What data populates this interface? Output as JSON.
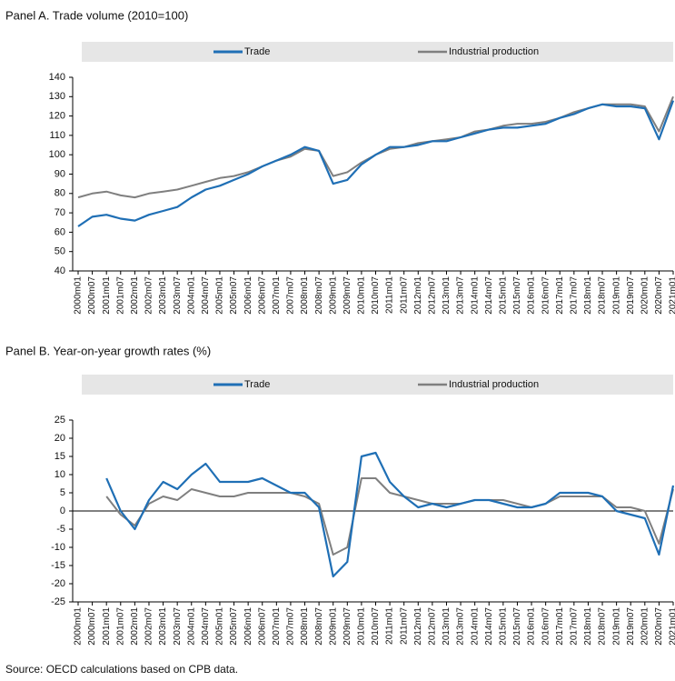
{
  "chart_data": [
    {
      "type": "line",
      "title": "Panel A. Trade volume (2010=100)",
      "categories": [
        "2000m01",
        "2000m07",
        "2001m01",
        "2001m07",
        "2002m01",
        "2002m07",
        "2003m01",
        "2003m07",
        "2004m01",
        "2004m07",
        "2005m01",
        "2005m07",
        "2006m01",
        "2006m07",
        "2007m01",
        "2007m07",
        "2008m01",
        "2008m07",
        "2009m01",
        "2009m07",
        "2010m01",
        "2010m07",
        "2011m01",
        "2011m07",
        "2012m01",
        "2012m07",
        "2013m01",
        "2013m07",
        "2014m01",
        "2014m07",
        "2015m01",
        "2015m07",
        "2016m01",
        "2016m07",
        "2017m01",
        "2017m07",
        "2018m01",
        "2018m07",
        "2019m01",
        "2019m07",
        "2020m01",
        "2020m07",
        "2021m01"
      ],
      "series": [
        {
          "name": "Trade",
          "color": "#1f6fb5",
          "values": [
            63,
            68,
            69,
            67,
            66,
            69,
            71,
            73,
            78,
            82,
            84,
            87,
            90,
            94,
            97,
            100,
            104,
            102,
            85,
            87,
            95,
            100,
            104,
            104,
            105,
            107,
            107,
            109,
            111,
            113,
            114,
            114,
            115,
            116,
            119,
            121,
            124,
            126,
            125,
            125,
            124,
            108,
            128
          ]
        },
        {
          "name": "Industrial production",
          "color": "#7f7f7f",
          "values": [
            78,
            80,
            81,
            79,
            78,
            80,
            81,
            82,
            84,
            86,
            88,
            89,
            91,
            94,
            97,
            99,
            103,
            102,
            89,
            91,
            96,
            100,
            103,
            104,
            106,
            107,
            108,
            109,
            112,
            113,
            115,
            116,
            116,
            117,
            119,
            122,
            124,
            126,
            126,
            126,
            125,
            112,
            130
          ]
        }
      ],
      "ylim": [
        40,
        140
      ],
      "yticks": [
        40,
        50,
        60,
        70,
        80,
        90,
        100,
        110,
        120,
        130,
        140
      ]
    },
    {
      "type": "line",
      "title": "Panel B. Year-on-year growth rates (%)",
      "categories": [
        "2000m01",
        "2000m07",
        "2001m01",
        "2001m07",
        "2002m01",
        "2002m07",
        "2003m01",
        "2003m07",
        "2004m01",
        "2004m07",
        "2005m01",
        "2005m07",
        "2006m01",
        "2006m07",
        "2007m01",
        "2007m07",
        "2008m01",
        "2008m07",
        "2009m01",
        "2009m07",
        "2010m01",
        "2010m07",
        "2011m01",
        "2011m07",
        "2012m01",
        "2012m07",
        "2013m01",
        "2013m07",
        "2014m01",
        "2014m07",
        "2015m01",
        "2015m07",
        "2016m01",
        "2016m07",
        "2017m01",
        "2017m07",
        "2018m01",
        "2018m07",
        "2019m01",
        "2019m07",
        "2020m01",
        "2020m07",
        "2021m01"
      ],
      "series": [
        {
          "name": "Trade",
          "color": "#1f6fb5",
          "values": [
            null,
            null,
            9,
            0,
            -5,
            3,
            8,
            6,
            10,
            13,
            8,
            8,
            8,
            9,
            7,
            5,
            5,
            1,
            -18,
            -14,
            15,
            16,
            8,
            4,
            1,
            2,
            1,
            2,
            3,
            3,
            2,
            1,
            1,
            2,
            5,
            5,
            5,
            4,
            0,
            -1,
            -2,
            -12,
            7
          ]
        },
        {
          "name": "Industrial production",
          "color": "#7f7f7f",
          "values": [
            null,
            null,
            4,
            -1,
            -4,
            2,
            4,
            3,
            6,
            5,
            4,
            4,
            5,
            5,
            5,
            5,
            4,
            2,
            -12,
            -10,
            9,
            9,
            5,
            4,
            3,
            2,
            2,
            2,
            3,
            3,
            3,
            2,
            1,
            2,
            4,
            4,
            4,
            4,
            1,
            1,
            0,
            -9,
            6
          ]
        }
      ],
      "ylim": [
        -25,
        25
      ],
      "yticks": [
        -25,
        -20,
        -15,
        -10,
        -5,
        0,
        5,
        10,
        15,
        20,
        25
      ],
      "zero_line": true
    }
  ],
  "source": "Source: OECD calculations based on CPB data."
}
